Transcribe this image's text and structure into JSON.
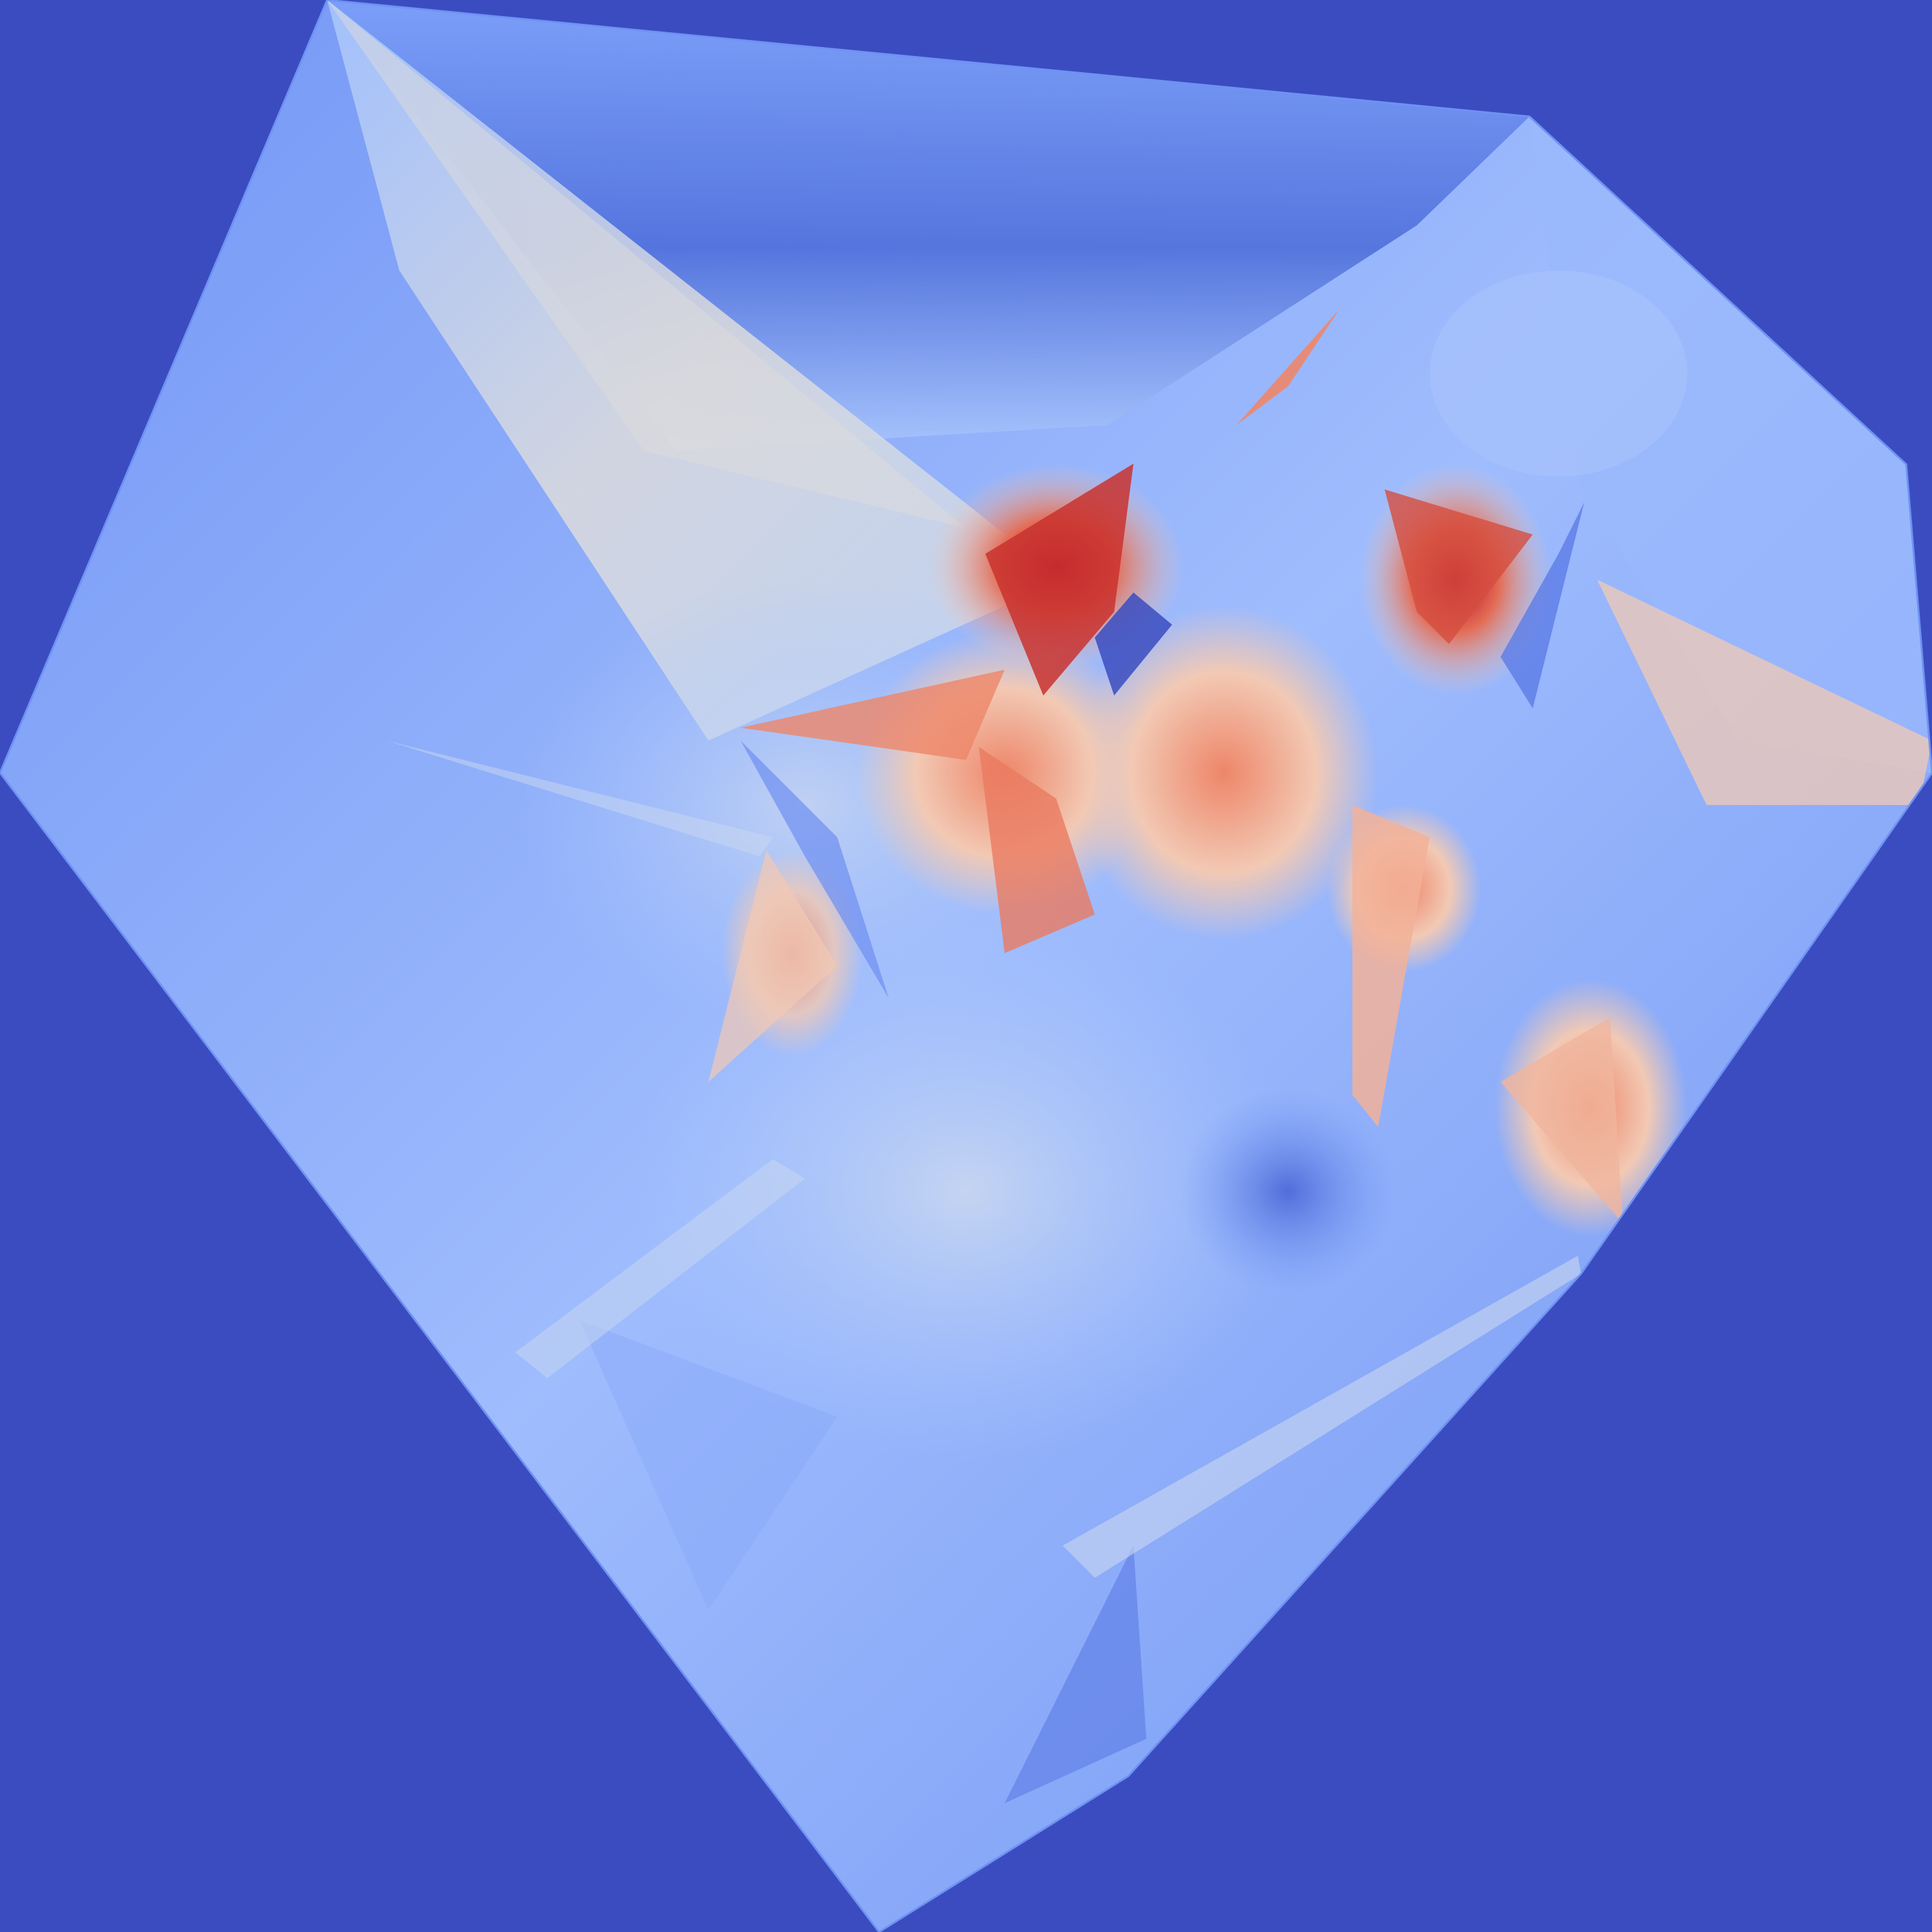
{
  "scene": {
    "colormap": "coolwarm",
    "colors": {
      "background": "#3b4cc0",
      "cool_dark": "#3b4cc0",
      "cool_mid": "#7396f5",
      "cool_light": "#aac7fd",
      "neutral": "#dddcdc",
      "warm_light": "#f2c9b4",
      "warm_mid": "#ee8669",
      "warm_dark": "#b40426"
    }
  }
}
